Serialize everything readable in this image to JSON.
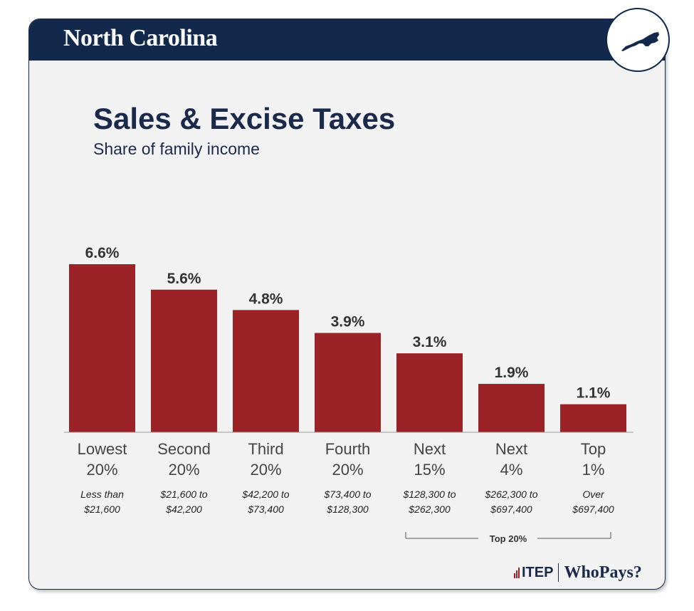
{
  "header": {
    "state_name": "North Carolina"
  },
  "title": "Sales & Excise Taxes",
  "subtitle": "Share of family income",
  "colors": {
    "bar": "#9b2226",
    "navy": "#13294b",
    "text": "#333333"
  },
  "top_group": {
    "label": "Top 20%"
  },
  "footer": {
    "org": "ITEP",
    "brand": "WhoPays?"
  },
  "chart_data": {
    "type": "bar",
    "title": "Sales & Excise Taxes",
    "subtitle": "Share of family income",
    "categories": [
      "Lowest 20%",
      "Second 20%",
      "Third 20%",
      "Fourth 20%",
      "Next 15%",
      "Next 4%",
      "Top 1%"
    ],
    "category_lines": [
      [
        "Lowest",
        "20%"
      ],
      [
        "Second",
        "20%"
      ],
      [
        "Third",
        "20%"
      ],
      [
        "Fourth",
        "20%"
      ],
      [
        "Next",
        "15%"
      ],
      [
        "Next",
        "4%"
      ],
      [
        "Top",
        "1%"
      ]
    ],
    "income_ranges": [
      [
        "Less than",
        "$21,600"
      ],
      [
        "$21,600 to",
        "$42,200"
      ],
      [
        "$42,200 to",
        "$73,400"
      ],
      [
        "$73,400 to",
        "$128,300"
      ],
      [
        "$128,300 to",
        "$262,300"
      ],
      [
        "$262,300 to",
        "$697,400"
      ],
      [
        "Over",
        "$697,400"
      ]
    ],
    "values": [
      6.6,
      5.6,
      4.8,
      3.9,
      3.1,
      1.9,
      1.1
    ],
    "value_labels": [
      "6.6%",
      "5.6%",
      "4.8%",
      "3.9%",
      "3.1%",
      "1.9%",
      "1.1%"
    ],
    "ylim": [
      0,
      6.6
    ],
    "grid": false
  }
}
